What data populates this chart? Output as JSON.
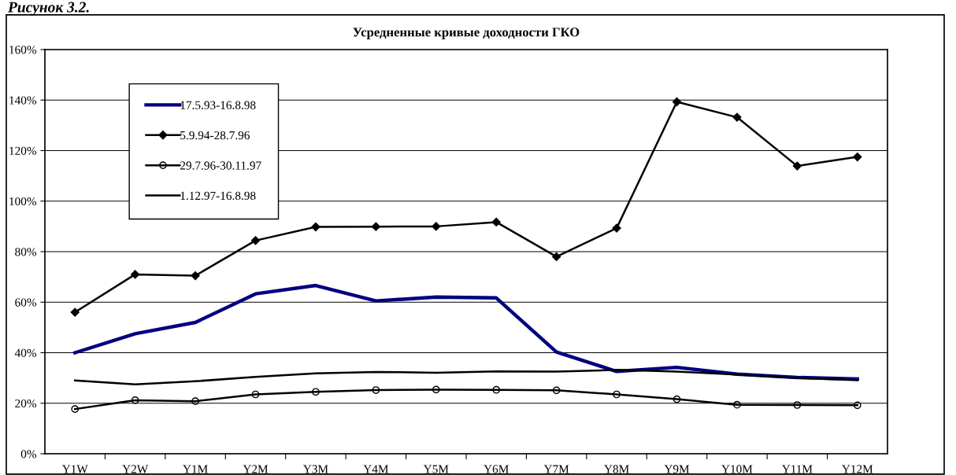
{
  "chart_data": {
    "type": "line",
    "title": "Усредненные кривые доходности ГКО",
    "annotations": [
      "Рисунок 3.2."
    ],
    "categories": [
      "Y1W",
      "Y2W",
      "Y1M",
      "Y2M",
      "Y3M",
      "Y4M",
      "Y5M",
      "Y6M",
      "Y7M",
      "Y8M",
      "Y9M",
      "Y10M",
      "Y11M",
      "Y12M"
    ],
    "series": [
      {
        "name": "17.5.93-16.8.98",
        "color": "#000080",
        "marker": "none",
        "values": [
          40,
          47.5,
          52,
          63.3,
          66.6,
          60.5,
          62,
          61.7,
          40.3,
          32.6,
          34.2,
          31.5,
          30.2,
          29.6
        ]
      },
      {
        "name": "5.9.94-28.7.96",
        "color": "#000000",
        "marker": "diamond",
        "values": [
          56,
          71,
          70.5,
          84.4,
          89.8,
          89.9,
          90,
          91.7,
          78,
          89.3,
          139.3,
          133.2,
          113.9,
          117.5
        ]
      },
      {
        "name": "29.7.96-30.11.97",
        "color": "#000000",
        "marker": "circle",
        "values": [
          17.7,
          21.2,
          20.8,
          23.5,
          24.5,
          25.2,
          25.4,
          25.3,
          25.1,
          23.5,
          21.6,
          19.4,
          19.3,
          19.2
        ]
      },
      {
        "name": "1.12.97-16.8.98",
        "color": "#000000",
        "marker": "none",
        "values": [
          29,
          27.5,
          28.7,
          30.4,
          31.8,
          32.4,
          32.1,
          32.6,
          32.5,
          33.2,
          32.5,
          31.4,
          30,
          29.1
        ]
      }
    ],
    "ylim": [
      0,
      160
    ],
    "yticks": [
      {
        "value": 0,
        "label": "0%"
      },
      {
        "value": 20,
        "label": "20%"
      },
      {
        "value": 40,
        "label": "40%"
      },
      {
        "value": 60,
        "label": "60%"
      },
      {
        "value": 80,
        "label": "80%"
      },
      {
        "value": 100,
        "label": "100%"
      },
      {
        "value": 120,
        "label": "120%"
      },
      {
        "value": 140,
        "label": "140%"
      },
      {
        "value": 160,
        "label": "160%"
      }
    ],
    "grid": "y",
    "legend": "top left",
    "line_style": "solid"
  }
}
